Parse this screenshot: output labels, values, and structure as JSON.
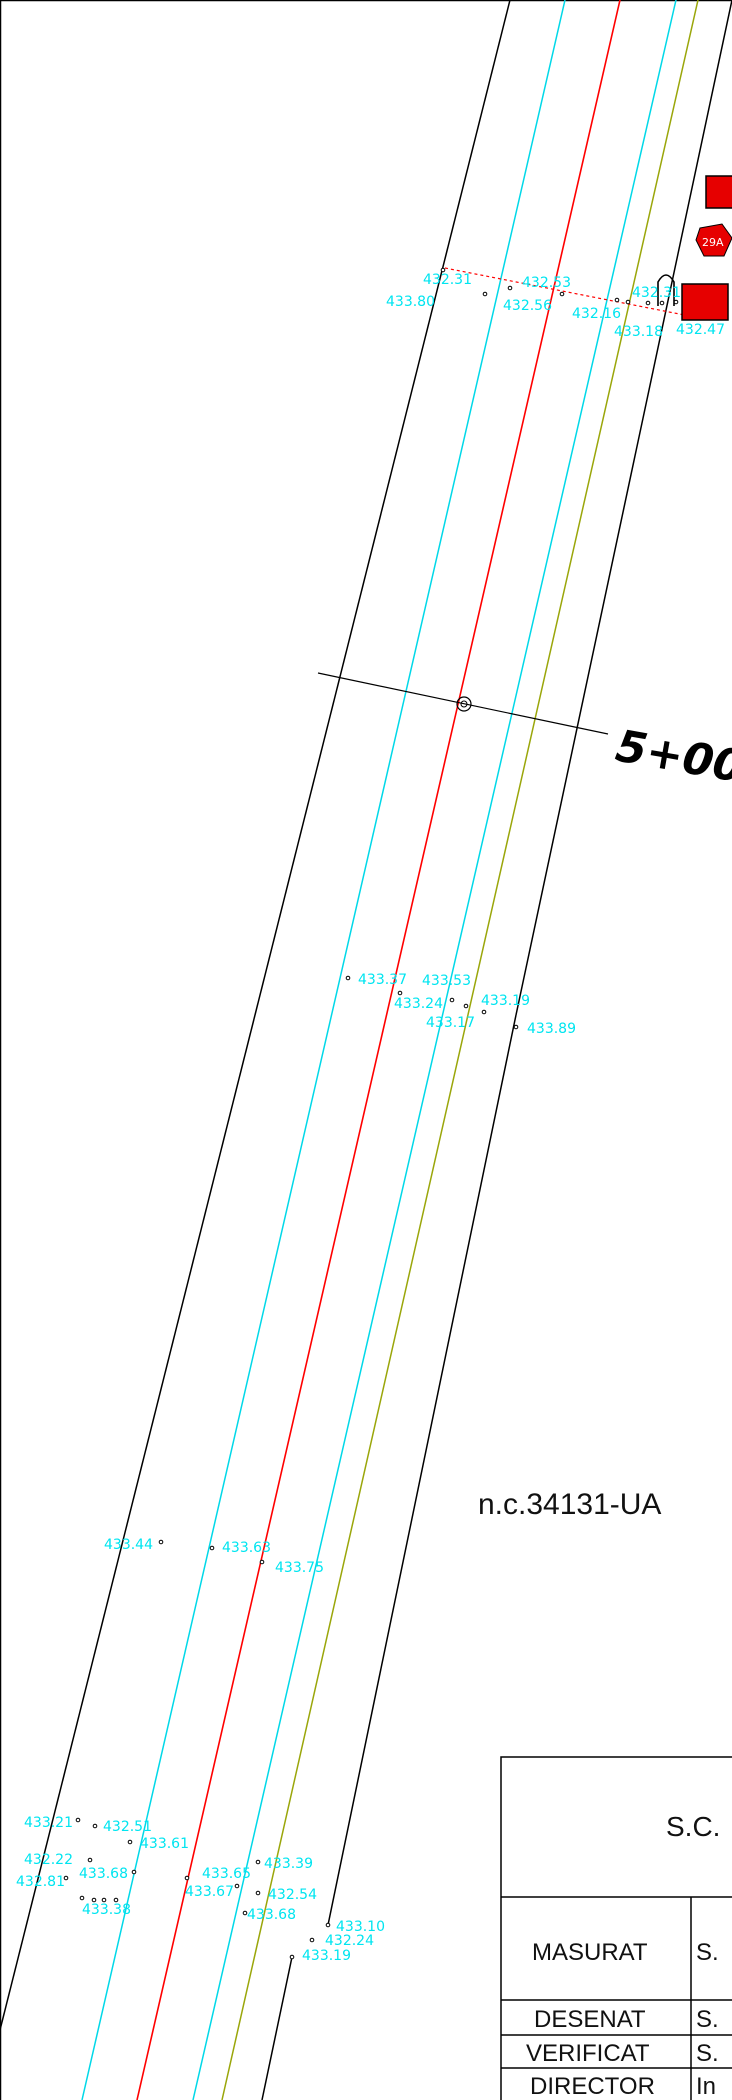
{
  "station_label": "5+00",
  "parcel_label": "n.c.34131-UA",
  "sign_label": "29A",
  "colors": {
    "centerline": "#ff0000",
    "lane_edge": "#00d8e8",
    "road_edge": "#000000",
    "shoulder": "#9aa60a",
    "elevation_text": "#00e5f0",
    "sign_fill": "#e60000"
  },
  "elevations": [
    "432.31",
    "433.80",
    "432.53",
    "432.56",
    "432.16",
    "432.31",
    "433.18",
    "432.47",
    "433.37",
    "433.53",
    "433.24",
    "433.17",
    "433.19",
    "433.89",
    "433.44",
    "433.63",
    "433.75",
    "433.21",
    "432.51",
    "433.61",
    "432.22",
    "432.81",
    "433.68",
    "433.38",
    "433.65",
    "433.67",
    "433.39",
    "432.54",
    "433.68",
    "433.10",
    "432.24",
    "433.19"
  ],
  "title_block": {
    "company": "S.C.",
    "rows": [
      {
        "label": "MASURAT",
        "value": "S."
      },
      {
        "label": "DESENAT",
        "value": "S."
      },
      {
        "label": "VERIFICAT",
        "value": "S."
      },
      {
        "label": "DIRECTOR",
        "value": "In"
      }
    ]
  }
}
